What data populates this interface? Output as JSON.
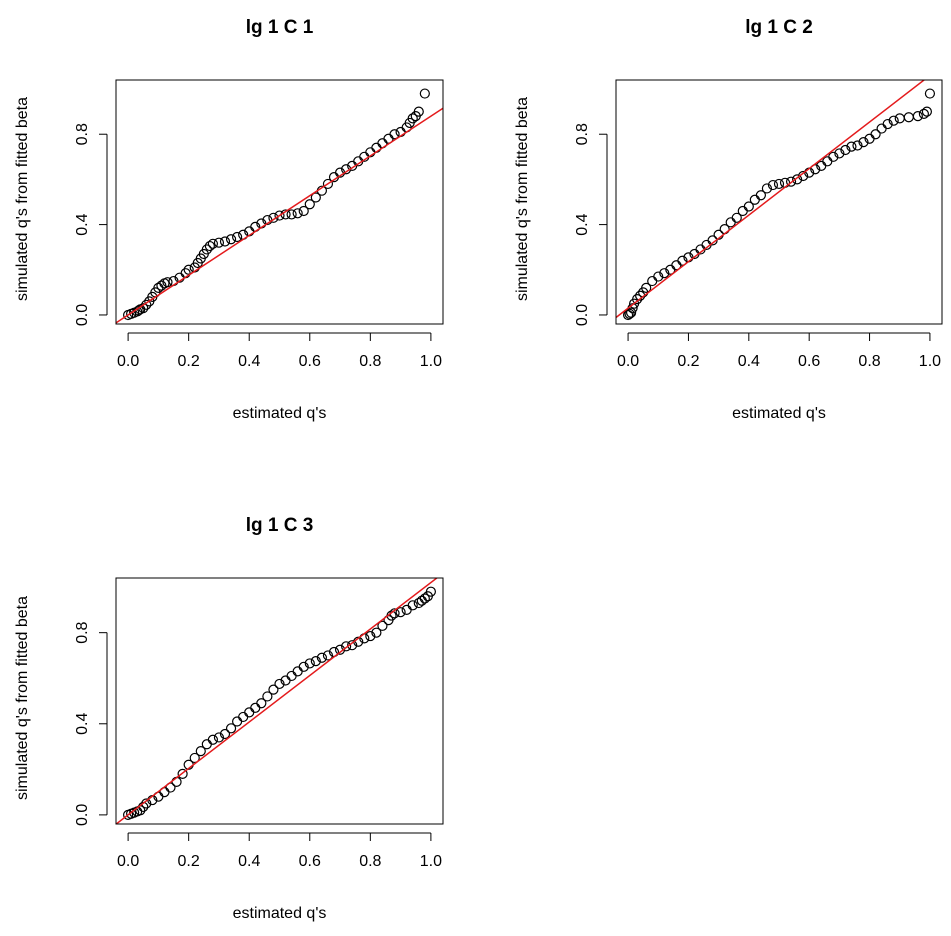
{
  "chart_data": [
    {
      "type": "scatter",
      "title": "lg 1 C 1",
      "xlabel": "estimated q's",
      "ylabel": "simulated q's from fitted beta",
      "xlim": [
        0.0,
        1.0
      ],
      "ylim": [
        0.0,
        1.0
      ],
      "x_ticks": [
        "0.0",
        "0.2",
        "0.4",
        "0.6",
        "0.8",
        "1.0"
      ],
      "y_ticks": [
        "0.0",
        "0.4",
        "0.8"
      ],
      "grid": false,
      "reference_line": {
        "intercept": 0.0,
        "slope": 0.88,
        "color": "#e41a1c"
      },
      "series": [
        {
          "points": [
            [
              0.0,
              0.0
            ],
            [
              0.01,
              0.005
            ],
            [
              0.02,
              0.01
            ],
            [
              0.03,
              0.015
            ],
            [
              0.035,
              0.02
            ],
            [
              0.04,
              0.025
            ],
            [
              0.05,
              0.03
            ],
            [
              0.06,
              0.045
            ],
            [
              0.07,
              0.06
            ],
            [
              0.08,
              0.08
            ],
            [
              0.09,
              0.1
            ],
            [
              0.1,
              0.12
            ],
            [
              0.11,
              0.13
            ],
            [
              0.12,
              0.14
            ],
            [
              0.13,
              0.145
            ],
            [
              0.15,
              0.15
            ],
            [
              0.17,
              0.165
            ],
            [
              0.19,
              0.185
            ],
            [
              0.2,
              0.2
            ],
            [
              0.22,
              0.21
            ],
            [
              0.23,
              0.23
            ],
            [
              0.24,
              0.25
            ],
            [
              0.25,
              0.27
            ],
            [
              0.26,
              0.29
            ],
            [
              0.27,
              0.305
            ],
            [
              0.28,
              0.315
            ],
            [
              0.3,
              0.32
            ],
            [
              0.32,
              0.325
            ],
            [
              0.34,
              0.335
            ],
            [
              0.36,
              0.345
            ],
            [
              0.38,
              0.355
            ],
            [
              0.4,
              0.37
            ],
            [
              0.42,
              0.39
            ],
            [
              0.44,
              0.405
            ],
            [
              0.46,
              0.42
            ],
            [
              0.48,
              0.43
            ],
            [
              0.5,
              0.44
            ],
            [
              0.52,
              0.445
            ],
            [
              0.54,
              0.445
            ],
            [
              0.56,
              0.45
            ],
            [
              0.58,
              0.46
            ],
            [
              0.6,
              0.49
            ],
            [
              0.62,
              0.52
            ],
            [
              0.64,
              0.55
            ],
            [
              0.66,
              0.58
            ],
            [
              0.68,
              0.61
            ],
            [
              0.7,
              0.63
            ],
            [
              0.72,
              0.645
            ],
            [
              0.74,
              0.66
            ],
            [
              0.76,
              0.68
            ],
            [
              0.78,
              0.7
            ],
            [
              0.8,
              0.72
            ],
            [
              0.82,
              0.74
            ],
            [
              0.84,
              0.76
            ],
            [
              0.86,
              0.78
            ],
            [
              0.88,
              0.8
            ],
            [
              0.9,
              0.81
            ],
            [
              0.92,
              0.83
            ],
            [
              0.93,
              0.85
            ],
            [
              0.94,
              0.87
            ],
            [
              0.95,
              0.88
            ],
            [
              0.96,
              0.9
            ],
            [
              0.98,
              0.98
            ]
          ]
        }
      ]
    },
    {
      "type": "scatter",
      "title": "lg 1 C 2",
      "xlabel": "estimated q's",
      "ylabel": "simulated q's from fitted beta",
      "xlim": [
        0.0,
        1.0
      ],
      "ylim": [
        0.0,
        1.0
      ],
      "x_ticks": [
        "0.0",
        "0.2",
        "0.4",
        "0.6",
        "0.8",
        "1.0"
      ],
      "y_ticks": [
        "0.0",
        "0.4",
        "0.8"
      ],
      "grid": false,
      "reference_line": {
        "intercept": 0.03,
        "slope": 1.03,
        "color": "#e41a1c"
      },
      "series": [
        {
          "points": [
            [
              0.0,
              0.0
            ],
            [
              0.005,
              0.005
            ],
            [
              0.01,
              0.01
            ],
            [
              0.015,
              0.03
            ],
            [
              0.02,
              0.05
            ],
            [
              0.03,
              0.07
            ],
            [
              0.04,
              0.085
            ],
            [
              0.05,
              0.1
            ],
            [
              0.06,
              0.12
            ],
            [
              0.08,
              0.15
            ],
            [
              0.1,
              0.17
            ],
            [
              0.12,
              0.185
            ],
            [
              0.14,
              0.2
            ],
            [
              0.16,
              0.22
            ],
            [
              0.18,
              0.24
            ],
            [
              0.2,
              0.255
            ],
            [
              0.22,
              0.27
            ],
            [
              0.24,
              0.29
            ],
            [
              0.26,
              0.31
            ],
            [
              0.28,
              0.33
            ],
            [
              0.3,
              0.355
            ],
            [
              0.32,
              0.38
            ],
            [
              0.34,
              0.41
            ],
            [
              0.36,
              0.43
            ],
            [
              0.38,
              0.46
            ],
            [
              0.4,
              0.48
            ],
            [
              0.42,
              0.51
            ],
            [
              0.44,
              0.53
            ],
            [
              0.46,
              0.56
            ],
            [
              0.48,
              0.575
            ],
            [
              0.5,
              0.58
            ],
            [
              0.52,
              0.585
            ],
            [
              0.54,
              0.59
            ],
            [
              0.56,
              0.6
            ],
            [
              0.58,
              0.615
            ],
            [
              0.6,
              0.63
            ],
            [
              0.62,
              0.645
            ],
            [
              0.64,
              0.66
            ],
            [
              0.66,
              0.68
            ],
            [
              0.68,
              0.7
            ],
            [
              0.7,
              0.715
            ],
            [
              0.72,
              0.73
            ],
            [
              0.74,
              0.745
            ],
            [
              0.76,
              0.75
            ],
            [
              0.78,
              0.765
            ],
            [
              0.8,
              0.78
            ],
            [
              0.82,
              0.8
            ],
            [
              0.84,
              0.825
            ],
            [
              0.86,
              0.845
            ],
            [
              0.88,
              0.86
            ],
            [
              0.9,
              0.87
            ],
            [
              0.93,
              0.875
            ],
            [
              0.96,
              0.88
            ],
            [
              0.98,
              0.89
            ],
            [
              0.99,
              0.9
            ],
            [
              1.0,
              0.98
            ]
          ]
        }
      ]
    },
    {
      "type": "scatter",
      "title": "lg 1 C 3",
      "xlabel": "estimated q's",
      "ylabel": "simulated q's from fitted beta",
      "xlim": [
        0.0,
        1.0
      ],
      "ylim": [
        0.0,
        1.0
      ],
      "x_ticks": [
        "0.0",
        "0.2",
        "0.4",
        "0.6",
        "0.8",
        "1.0"
      ],
      "y_ticks": [
        "0.0",
        "0.4",
        "0.8"
      ],
      "grid": false,
      "reference_line": {
        "intercept": 0.0,
        "slope": 1.02,
        "color": "#e41a1c"
      },
      "series": [
        {
          "points": [
            [
              0.0,
              0.0
            ],
            [
              0.01,
              0.005
            ],
            [
              0.02,
              0.01
            ],
            [
              0.03,
              0.015
            ],
            [
              0.04,
              0.02
            ],
            [
              0.05,
              0.035
            ],
            [
              0.06,
              0.05
            ],
            [
              0.08,
              0.065
            ],
            [
              0.1,
              0.08
            ],
            [
              0.12,
              0.1
            ],
            [
              0.14,
              0.12
            ],
            [
              0.16,
              0.145
            ],
            [
              0.18,
              0.18
            ],
            [
              0.2,
              0.22
            ],
            [
              0.22,
              0.25
            ],
            [
              0.24,
              0.28
            ],
            [
              0.26,
              0.31
            ],
            [
              0.28,
              0.33
            ],
            [
              0.3,
              0.34
            ],
            [
              0.32,
              0.355
            ],
            [
              0.34,
              0.38
            ],
            [
              0.36,
              0.41
            ],
            [
              0.38,
              0.43
            ],
            [
              0.4,
              0.45
            ],
            [
              0.42,
              0.47
            ],
            [
              0.44,
              0.49
            ],
            [
              0.46,
              0.52
            ],
            [
              0.48,
              0.55
            ],
            [
              0.5,
              0.575
            ],
            [
              0.52,
              0.59
            ],
            [
              0.54,
              0.61
            ],
            [
              0.56,
              0.63
            ],
            [
              0.58,
              0.65
            ],
            [
              0.6,
              0.665
            ],
            [
              0.62,
              0.675
            ],
            [
              0.64,
              0.69
            ],
            [
              0.66,
              0.7
            ],
            [
              0.68,
              0.715
            ],
            [
              0.7,
              0.725
            ],
            [
              0.72,
              0.74
            ],
            [
              0.74,
              0.745
            ],
            [
              0.76,
              0.76
            ],
            [
              0.78,
              0.775
            ],
            [
              0.8,
              0.785
            ],
            [
              0.82,
              0.8
            ],
            [
              0.84,
              0.83
            ],
            [
              0.86,
              0.855
            ],
            [
              0.87,
              0.875
            ],
            [
              0.88,
              0.885
            ],
            [
              0.9,
              0.89
            ],
            [
              0.92,
              0.9
            ],
            [
              0.94,
              0.92
            ],
            [
              0.96,
              0.93
            ],
            [
              0.97,
              0.94
            ],
            [
              0.98,
              0.95
            ],
            [
              0.99,
              0.96
            ],
            [
              1.0,
              0.98
            ]
          ]
        }
      ]
    }
  ]
}
